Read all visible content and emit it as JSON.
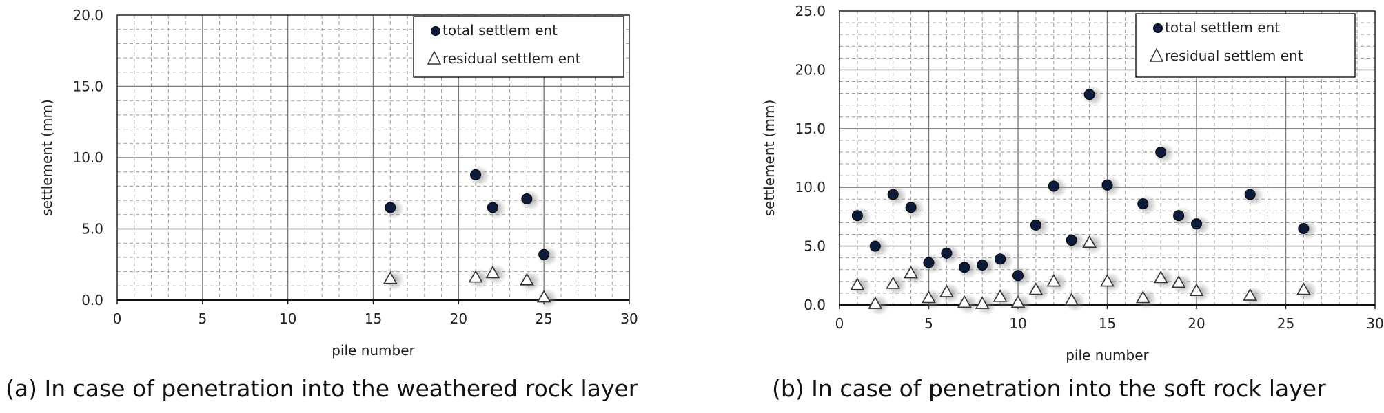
{
  "chart_data": [
    {
      "type": "scatter",
      "caption": "(a) In case of penetration into the weathered rock layer",
      "xlabel": "pile number",
      "ylabel": "settlement  (mm)",
      "xlim": [
        0,
        30
      ],
      "ylim": [
        0,
        20
      ],
      "xticks": [
        "0",
        "5",
        "10",
        "15",
        "20",
        "25",
        "30"
      ],
      "yticks": [
        "0.0",
        "5.0",
        "10.0",
        "15.0",
        "20.0"
      ],
      "grid": true,
      "legend_position": "top-right",
      "legend": [
        "total settlem ent",
        "residual settlem ent"
      ],
      "series": [
        {
          "name": "total settlem ent",
          "marker": "circle",
          "color": "#0d1b3a",
          "x": [
            16,
            21,
            22,
            24,
            25
          ],
          "y": [
            6.5,
            8.8,
            6.5,
            7.1,
            3.2
          ]
        },
        {
          "name": "residual settlem ent",
          "marker": "triangle",
          "color": "#333333",
          "x": [
            16,
            21,
            22,
            24,
            25
          ],
          "y": [
            1.5,
            1.6,
            1.9,
            1.4,
            0.2
          ]
        }
      ]
    },
    {
      "type": "scatter",
      "caption": "(b) In case of penetration into the soft rock layer",
      "xlabel": "pile number",
      "ylabel": "settlement  (mm)",
      "xlim": [
        0,
        30
      ],
      "ylim": [
        0,
        25
      ],
      "xticks": [
        "0",
        "5",
        "10",
        "15",
        "20",
        "25",
        "30"
      ],
      "yticks": [
        "0.0",
        "5.0",
        "10.0",
        "15.0",
        "20.0",
        "25.0"
      ],
      "grid": true,
      "legend_position": "top-right",
      "legend": [
        "total settlem ent",
        "residual settlem ent"
      ],
      "series": [
        {
          "name": "total settlem ent",
          "marker": "circle",
          "color": "#0d1b3a",
          "x": [
            1,
            2,
            3,
            4,
            5,
            6,
            7,
            8,
            9,
            10,
            11,
            12,
            13,
            14,
            15,
            17,
            18,
            19,
            20,
            23,
            26
          ],
          "y": [
            7.6,
            5.0,
            9.4,
            8.3,
            3.6,
            4.4,
            3.2,
            3.4,
            3.9,
            2.5,
            6.8,
            10.1,
            5.5,
            17.9,
            10.2,
            8.6,
            13.0,
            7.6,
            6.9,
            9.4,
            6.5
          ]
        },
        {
          "name": "residual settlem ent",
          "marker": "triangle",
          "color": "#333333",
          "x": [
            1,
            2,
            3,
            4,
            5,
            6,
            7,
            8,
            9,
            10,
            11,
            12,
            13,
            14,
            15,
            17,
            18,
            19,
            20,
            23,
            26
          ],
          "y": [
            1.7,
            0.1,
            1.8,
            2.7,
            0.6,
            1.1,
            0.2,
            0.1,
            0.7,
            0.2,
            1.3,
            2.0,
            0.4,
            5.3,
            2.0,
            0.6,
            2.3,
            1.9,
            1.2,
            0.8,
            1.3
          ]
        }
      ]
    }
  ]
}
